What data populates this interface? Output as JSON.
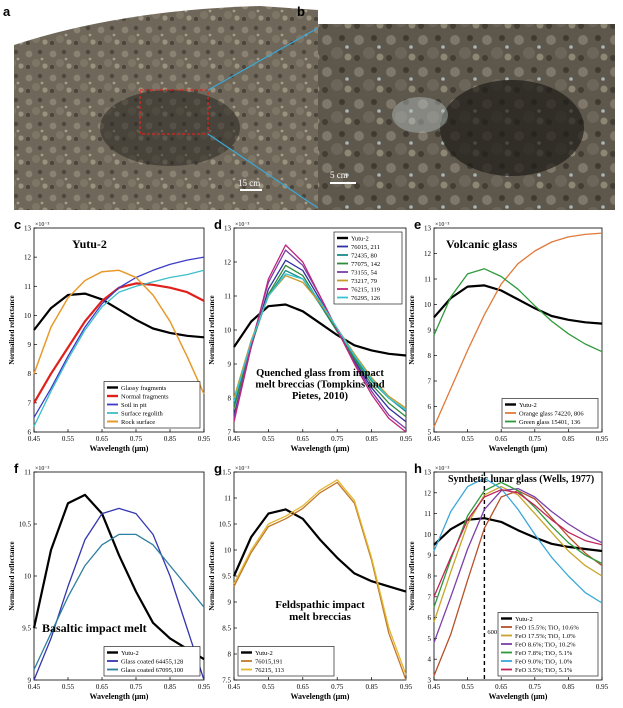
{
  "photos": {
    "a": {
      "panel_label": "a",
      "scale_label": "15 cm"
    },
    "b": {
      "panel_label": "b",
      "scale_label": "5 cm"
    }
  },
  "common": {
    "xlabel": "Wavelength (μm)",
    "ylabel": "Normalized reflectance",
    "exponent": "×10⁻³",
    "xticks": [
      "0.45",
      "0.55",
      "0.65",
      "0.75",
      "0.85",
      "0.95"
    ]
  },
  "chart_data": [
    {
      "panel_label": "c",
      "type": "line",
      "annotation": "Yutu-2",
      "xlim": [
        0.45,
        0.95
      ],
      "ylim": [
        6,
        13
      ],
      "yticks": [
        "6",
        "7",
        "8",
        "9",
        "10",
        "11",
        "12",
        "13"
      ],
      "legend_position": "bottom-right",
      "series": [
        {
          "name": "Glassy fragments",
          "color": "#000000",
          "width": 2.2,
          "x": [
            0.45,
            0.5,
            0.55,
            0.6,
            0.65,
            0.7,
            0.75,
            0.8,
            0.85,
            0.9,
            0.95
          ],
          "y": [
            9.5,
            10.25,
            10.7,
            10.75,
            10.55,
            10.2,
            9.85,
            9.55,
            9.4,
            9.3,
            9.25
          ]
        },
        {
          "name": "Normal fragments",
          "color": "#e0201b",
          "width": 2.2,
          "x": [
            0.45,
            0.5,
            0.55,
            0.6,
            0.65,
            0.7,
            0.75,
            0.8,
            0.85,
            0.9,
            0.95
          ],
          "y": [
            7.0,
            8.0,
            8.9,
            9.8,
            10.5,
            10.95,
            11.1,
            11.05,
            10.95,
            10.8,
            10.5
          ]
        },
        {
          "name": "Soil in pit",
          "color": "#3c3cc8",
          "width": 1.3,
          "x": [
            0.45,
            0.5,
            0.55,
            0.6,
            0.65,
            0.7,
            0.75,
            0.8,
            0.85,
            0.9,
            0.95
          ],
          "y": [
            6.5,
            7.5,
            8.6,
            9.6,
            10.4,
            10.95,
            11.3,
            11.55,
            11.75,
            11.9,
            12.0
          ]
        },
        {
          "name": "Surface regolith",
          "color": "#3bbfc8",
          "width": 1.3,
          "x": [
            0.45,
            0.5,
            0.55,
            0.6,
            0.65,
            0.7,
            0.75,
            0.8,
            0.85,
            0.9,
            0.95
          ],
          "y": [
            6.2,
            7.4,
            8.5,
            9.5,
            10.3,
            10.8,
            11.0,
            11.15,
            11.3,
            11.4,
            11.55
          ]
        },
        {
          "name": "Rock surface",
          "color": "#e79a2b",
          "width": 1.5,
          "x": [
            0.45,
            0.5,
            0.55,
            0.6,
            0.65,
            0.7,
            0.75,
            0.8,
            0.85,
            0.9,
            0.95
          ],
          "y": [
            8.0,
            9.6,
            10.6,
            11.2,
            11.5,
            11.55,
            11.3,
            10.7,
            9.8,
            8.6,
            7.3
          ]
        }
      ]
    },
    {
      "panel_label": "d",
      "type": "line",
      "annotation": "Quenched glass from impact melt breccias (Tompkins and Pietes, 2010)",
      "xlim": [
        0.45,
        0.95
      ],
      "ylim": [
        7,
        13
      ],
      "yticks": [
        "7",
        "8",
        "9",
        "10",
        "11",
        "12",
        "13"
      ],
      "legend_position": "top-right",
      "series": [
        {
          "name": "Yutu-2",
          "color": "#000000",
          "width": 2.2,
          "x": [
            0.45,
            0.5,
            0.55,
            0.6,
            0.65,
            0.7,
            0.75,
            0.8,
            0.85,
            0.9,
            0.95
          ],
          "y": [
            9.5,
            10.25,
            10.7,
            10.75,
            10.55,
            10.2,
            9.85,
            9.55,
            9.4,
            9.3,
            9.25
          ]
        },
        {
          "name": "76015, 211",
          "color": "#2f2f9f",
          "width": 1.3,
          "x": [
            0.45,
            0.5,
            0.55,
            0.6,
            0.65,
            0.7,
            0.75,
            0.8,
            0.85,
            0.9,
            0.95
          ],
          "y": [
            7.5,
            9.5,
            11.2,
            12.05,
            11.75,
            10.9,
            10.0,
            9.1,
            8.3,
            7.7,
            7.3
          ]
        },
        {
          "name": "72435, 80",
          "color": "#1a8a8a",
          "width": 1.3,
          "x": [
            0.45,
            0.5,
            0.55,
            0.6,
            0.65,
            0.7,
            0.75,
            0.8,
            0.85,
            0.9,
            0.95
          ],
          "y": [
            7.8,
            9.6,
            11.0,
            11.75,
            11.5,
            10.75,
            9.95,
            9.2,
            8.5,
            8.0,
            7.6
          ]
        },
        {
          "name": "77075, 142",
          "color": "#2f8a3a",
          "width": 1.3,
          "x": [
            0.45,
            0.5,
            0.55,
            0.6,
            0.65,
            0.7,
            0.75,
            0.8,
            0.85,
            0.9,
            0.95
          ],
          "y": [
            7.7,
            9.55,
            11.05,
            11.9,
            11.6,
            10.8,
            9.95,
            9.15,
            8.4,
            7.85,
            7.45
          ]
        },
        {
          "name": "73155, 54",
          "color": "#7a3fa8",
          "width": 1.3,
          "x": [
            0.45,
            0.5,
            0.55,
            0.6,
            0.65,
            0.7,
            0.75,
            0.8,
            0.85,
            0.9,
            0.95
          ],
          "y": [
            7.4,
            9.6,
            11.4,
            12.35,
            11.9,
            11.0,
            10.0,
            9.05,
            8.2,
            7.5,
            7.1
          ]
        },
        {
          "name": "73217, 79",
          "color": "#c89a2a",
          "width": 1.3,
          "x": [
            0.45,
            0.5,
            0.55,
            0.6,
            0.65,
            0.7,
            0.75,
            0.8,
            0.85,
            0.9,
            0.95
          ],
          "y": [
            8.0,
            9.7,
            11.0,
            11.6,
            11.4,
            10.8,
            10.05,
            9.3,
            8.6,
            8.05,
            7.7
          ]
        },
        {
          "name": "76215, 119",
          "color": "#c0267c",
          "width": 1.3,
          "x": [
            0.45,
            0.5,
            0.55,
            0.6,
            0.65,
            0.7,
            0.75,
            0.8,
            0.85,
            0.9,
            0.95
          ],
          "y": [
            7.3,
            9.5,
            11.5,
            12.5,
            12.0,
            11.0,
            10.0,
            9.0,
            8.1,
            7.4,
            7.0
          ]
        },
        {
          "name": "76295, 126",
          "color": "#39c4d4",
          "width": 1.3,
          "x": [
            0.45,
            0.5,
            0.55,
            0.6,
            0.65,
            0.7,
            0.75,
            0.8,
            0.85,
            0.9,
            0.95
          ],
          "y": [
            7.9,
            9.65,
            11.0,
            11.65,
            11.5,
            10.85,
            10.05,
            9.25,
            8.55,
            8.0,
            7.65
          ]
        }
      ]
    },
    {
      "panel_label": "e",
      "type": "line",
      "annotation": "Volcanic glass",
      "xlim": [
        0.45,
        0.95
      ],
      "ylim": [
        5,
        13
      ],
      "yticks": [
        "5",
        "6",
        "7",
        "8",
        "9",
        "10",
        "11",
        "12",
        "13"
      ],
      "legend_position": "bottom-right",
      "series": [
        {
          "name": "Yutu-2",
          "color": "#000000",
          "width": 2.2,
          "x": [
            0.45,
            0.5,
            0.55,
            0.6,
            0.65,
            0.7,
            0.75,
            0.8,
            0.85,
            0.9,
            0.95
          ],
          "y": [
            9.5,
            10.25,
            10.7,
            10.75,
            10.55,
            10.2,
            9.85,
            9.55,
            9.4,
            9.3,
            9.25
          ]
        },
        {
          "name": "Orange glass 74220, 806",
          "color": "#e07a3a",
          "width": 1.3,
          "x": [
            0.45,
            0.5,
            0.55,
            0.6,
            0.65,
            0.7,
            0.75,
            0.8,
            0.85,
            0.9,
            0.95
          ],
          "y": [
            5.2,
            6.7,
            8.2,
            9.6,
            10.8,
            11.6,
            12.1,
            12.45,
            12.65,
            12.75,
            12.8
          ]
        },
        {
          "name": "Green glass 15401, 136",
          "color": "#2f9a3a",
          "width": 1.3,
          "x": [
            0.45,
            0.5,
            0.55,
            0.6,
            0.65,
            0.7,
            0.75,
            0.8,
            0.85,
            0.9,
            0.95
          ],
          "y": [
            8.8,
            10.3,
            11.2,
            11.4,
            11.1,
            10.6,
            9.95,
            9.35,
            8.85,
            8.45,
            8.15
          ]
        }
      ]
    },
    {
      "panel_label": "f",
      "type": "line",
      "annotation": "Basaltic impact melt",
      "xlim": [
        0.45,
        0.95
      ],
      "ylim": [
        9,
        11
      ],
      "yticks": [
        "9",
        "9.5",
        "10",
        "10.5",
        "11"
      ],
      "legend_position": "bottom-right",
      "series": [
        {
          "name": "Yutu-2",
          "color": "#000000",
          "width": 2.2,
          "x": [
            0.45,
            0.5,
            0.55,
            0.6,
            0.65,
            0.7,
            0.75,
            0.8,
            0.85,
            0.9,
            0.95
          ],
          "y": [
            9.5,
            10.25,
            10.7,
            10.78,
            10.6,
            10.2,
            9.85,
            9.55,
            9.4,
            9.3,
            9.2
          ]
        },
        {
          "name": "Glass coated 64455,128",
          "color": "#3535b0",
          "width": 1.3,
          "x": [
            0.45,
            0.5,
            0.55,
            0.6,
            0.65,
            0.7,
            0.75,
            0.8,
            0.85,
            0.9,
            0.95
          ],
          "y": [
            9.0,
            9.4,
            9.9,
            10.35,
            10.6,
            10.65,
            10.6,
            10.4,
            10.0,
            9.5,
            9.0
          ]
        },
        {
          "name": "Glass coated 67095,100",
          "color": "#2e7ea0",
          "width": 1.3,
          "x": [
            0.45,
            0.5,
            0.55,
            0.6,
            0.65,
            0.7,
            0.75,
            0.8,
            0.85,
            0.9,
            0.95
          ],
          "y": [
            9.1,
            9.45,
            9.8,
            10.1,
            10.3,
            10.4,
            10.4,
            10.3,
            10.1,
            9.9,
            9.7
          ]
        }
      ]
    },
    {
      "panel_label": "g",
      "type": "line",
      "annotation": "Feldspathic impact melt breccias",
      "xlim": [
        0.45,
        0.95
      ],
      "ylim": [
        7.5,
        11.5
      ],
      "yticks": [
        "7.5",
        "8",
        "8.5",
        "9",
        "9.5",
        "10",
        "10.5",
        "11",
        "11.5"
      ],
      "legend_position": "bottom-left",
      "series": [
        {
          "name": "Yutu-2",
          "color": "#000000",
          "width": 2.2,
          "x": [
            0.45,
            0.5,
            0.55,
            0.6,
            0.65,
            0.7,
            0.75,
            0.8,
            0.85,
            0.9,
            0.95
          ],
          "y": [
            9.5,
            10.25,
            10.7,
            10.78,
            10.6,
            10.2,
            9.85,
            9.55,
            9.4,
            9.3,
            9.2
          ]
        },
        {
          "name": "76015,191",
          "color": "#c0782a",
          "width": 1.3,
          "x": [
            0.45,
            0.5,
            0.55,
            0.6,
            0.65,
            0.7,
            0.75,
            0.8,
            0.85,
            0.9,
            0.95
          ],
          "y": [
            9.3,
            9.95,
            10.45,
            10.6,
            10.8,
            11.1,
            11.3,
            10.9,
            9.8,
            8.4,
            7.5
          ]
        },
        {
          "name": "76215, 113",
          "color": "#e3b72f",
          "width": 1.3,
          "x": [
            0.45,
            0.5,
            0.55,
            0.6,
            0.65,
            0.7,
            0.75,
            0.8,
            0.85,
            0.9,
            0.95
          ],
          "y": [
            9.35,
            10.0,
            10.5,
            10.65,
            10.85,
            11.15,
            11.35,
            10.95,
            9.85,
            8.5,
            7.6
          ]
        }
      ]
    },
    {
      "panel_label": "h",
      "type": "line",
      "annotation": "Synthetic lunar glass (Wells, 1977)",
      "marker_label": "600 nm",
      "marker_x": 0.6,
      "xlim": [
        0.45,
        0.95
      ],
      "ylim": [
        3,
        13
      ],
      "yticks": [
        "3",
        "4",
        "5",
        "6",
        "7",
        "8",
        "9",
        "10",
        "11",
        "12",
        "13"
      ],
      "legend_position": "bottom-right",
      "series": [
        {
          "name": "Yutu-2",
          "color": "#000000",
          "width": 2.2,
          "x": [
            0.45,
            0.5,
            0.55,
            0.6,
            0.65,
            0.7,
            0.75,
            0.8,
            0.85,
            0.9,
            0.95
          ],
          "y": [
            9.5,
            10.25,
            10.7,
            10.78,
            10.6,
            10.2,
            9.85,
            9.55,
            9.4,
            9.3,
            9.2
          ]
        },
        {
          "name": "FeO 15.5%; TiO₂ 10.6%",
          "color": "#b5502a",
          "width": 1.3,
          "x": [
            0.45,
            0.5,
            0.55,
            0.6,
            0.65,
            0.7,
            0.75,
            0.8,
            0.85,
            0.9,
            0.95
          ],
          "y": [
            3.2,
            5.2,
            7.8,
            10.3,
            11.8,
            12.1,
            11.7,
            10.8,
            9.9,
            9.1,
            8.5
          ]
        },
        {
          "name": "FeO 17.5%; TiO₂ 1.0%",
          "color": "#c9a428",
          "width": 1.3,
          "x": [
            0.45,
            0.5,
            0.55,
            0.6,
            0.65,
            0.7,
            0.75,
            0.8,
            0.85,
            0.9,
            0.95
          ],
          "y": [
            5.8,
            8.2,
            10.5,
            11.9,
            12.3,
            11.9,
            11.0,
            10.1,
            9.2,
            8.5,
            8.0
          ]
        },
        {
          "name": "FeO 8.6%; TiO₂ 10.2%",
          "color": "#7a3fa8",
          "width": 1.3,
          "x": [
            0.45,
            0.5,
            0.55,
            0.6,
            0.65,
            0.7,
            0.75,
            0.8,
            0.85,
            0.9,
            0.95
          ],
          "y": [
            4.8,
            7.0,
            9.3,
            11.2,
            12.1,
            12.2,
            11.8,
            11.1,
            10.5,
            10.0,
            9.6
          ]
        },
        {
          "name": "FeO 7.8%; TiO₂ 5.1%",
          "color": "#2f9a3a",
          "width": 1.3,
          "x": [
            0.45,
            0.5,
            0.55,
            0.6,
            0.65,
            0.7,
            0.75,
            0.8,
            0.85,
            0.9,
            0.95
          ],
          "y": [
            6.5,
            8.8,
            10.9,
            12.1,
            12.5,
            12.1,
            11.3,
            10.4,
            9.6,
            9.0,
            8.6
          ]
        },
        {
          "name": "FeO 9.0%; TiO₂ 1.0%",
          "color": "#3aa8d8",
          "width": 1.3,
          "x": [
            0.45,
            0.5,
            0.55,
            0.6,
            0.65,
            0.7,
            0.75,
            0.8,
            0.85,
            0.9,
            0.95
          ],
          "y": [
            9.2,
            11.1,
            12.3,
            12.7,
            12.2,
            11.2,
            10.0,
            8.9,
            8.0,
            7.2,
            6.7
          ]
        },
        {
          "name": "FeO 3.5%; TiO₂ 5.1%",
          "color": "#c0265a",
          "width": 1.3,
          "x": [
            0.45,
            0.5,
            0.55,
            0.6,
            0.65,
            0.7,
            0.75,
            0.8,
            0.85,
            0.9,
            0.95
          ],
          "y": [
            7.0,
            8.9,
            10.7,
            11.8,
            12.15,
            12.0,
            11.4,
            10.7,
            10.1,
            9.7,
            9.5
          ]
        }
      ]
    }
  ]
}
